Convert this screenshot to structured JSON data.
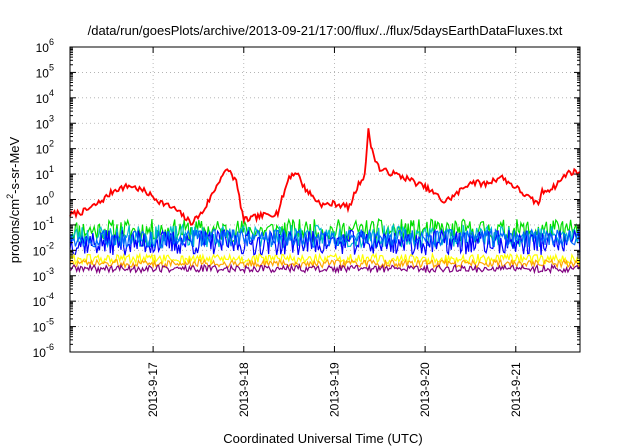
{
  "chart_data": {
    "type": "line",
    "title": "/data/run/goesPlots/archive/2013-09-21/17:00/flux/../flux/5daysEarthDataFluxes.txt",
    "xlabel": "Coordinated Universal Time (UTC)",
    "ylabel": {
      "prefix": "protons/cm",
      "sup": "2",
      "suffix": "-s-sr-MeV"
    },
    "y_scale": "log",
    "ylim": [
      1e-06,
      1000000.0
    ],
    "y_ticks": [
      {
        "exp": "-6",
        "value": 1e-06
      },
      {
        "exp": "-5",
        "value": 1e-05
      },
      {
        "exp": "-4",
        "value": 0.0001
      },
      {
        "exp": "-3",
        "value": 0.001
      },
      {
        "exp": "-2",
        "value": 0.01
      },
      {
        "exp": "-1",
        "value": 0.1
      },
      {
        "exp": "0",
        "value": 1
      },
      {
        "exp": "1",
        "value": 10
      },
      {
        "exp": "2",
        "value": 100
      },
      {
        "exp": "3",
        "value": 1000.0
      },
      {
        "exp": "4",
        "value": 10000.0
      },
      {
        "exp": "5",
        "value": 100000.0
      },
      {
        "exp": "6",
        "value": 1000000.0
      }
    ],
    "y_tick_base": "10",
    "xlim": [
      "2013-09-16T02:00",
      "2013-09-21T17:00"
    ],
    "x_ticks": [
      {
        "label": "2013-9-17",
        "date": "2013-09-17T00:00"
      },
      {
        "label": "2013-9-18",
        "date": "2013-09-18T00:00"
      },
      {
        "label": "2013-9-19",
        "date": "2013-09-19T00:00"
      },
      {
        "label": "2013-9-20",
        "date": "2013-09-20T00:00"
      },
      {
        "label": "2013-9-21",
        "date": "2013-09-21T00:00"
      }
    ],
    "grid": true,
    "series": [
      {
        "color": "#ff0000",
        "x": [
          "2013-09-16T02:00",
          "2013-09-16T06:00",
          "2013-09-16T10:00",
          "2013-09-16T14:00",
          "2013-09-16T18:00",
          "2013-09-16T22:00",
          "2013-09-17T02:00",
          "2013-09-17T06:00",
          "2013-09-17T10:00",
          "2013-09-17T13:00",
          "2013-09-17T16:00",
          "2013-09-17T18:00",
          "2013-09-17T20:00",
          "2013-09-17T22:00",
          "2013-09-18T00:00",
          "2013-09-18T03:00",
          "2013-09-18T06:00",
          "2013-09-18T09:00",
          "2013-09-18T12:00",
          "2013-09-18T14:00",
          "2013-09-18T16:00",
          "2013-09-18T19:00",
          "2013-09-18T21:00",
          "2013-09-19T00:00",
          "2013-09-19T04:00",
          "2013-09-19T06:00",
          "2013-09-19T08:00",
          "2013-09-19T09:00",
          "2013-09-19T10:00",
          "2013-09-19T12:00",
          "2013-09-19T16:00",
          "2013-09-19T20:00",
          "2013-09-20T00:00",
          "2013-09-20T03:00",
          "2013-09-20T05:00",
          "2013-09-20T08:00",
          "2013-09-20T12:00",
          "2013-09-20T16:00",
          "2013-09-20T20:00",
          "2013-09-21T00:00",
          "2013-09-21T04:00",
          "2013-09-21T06:00",
          "2013-09-21T07:00",
          "2013-09-21T10:00",
          "2013-09-21T14:00",
          "2013-09-21T17:00"
        ],
        "values": [
          0.25,
          0.35,
          0.8,
          2.5,
          3.5,
          2.0,
          0.8,
          0.4,
          0.12,
          0.3,
          2.0,
          8,
          15,
          5,
          0.15,
          0.2,
          0.25,
          0.3,
          8,
          12,
          3,
          1.0,
          0.6,
          0.7,
          0.5,
          3,
          10,
          500,
          80,
          15,
          10,
          6,
          3,
          1.5,
          0.8,
          1.5,
          5,
          4,
          8,
          3,
          1.0,
          0.7,
          2,
          3,
          12,
          12
        ]
      },
      {
        "color": "#00dd00",
        "base": 0.06,
        "amp": 0.45,
        "seed": 11
      },
      {
        "color": "#00bbcc",
        "base": 0.035,
        "amp": 0.45,
        "seed": 23
      },
      {
        "color": "#0000ff",
        "base": 0.02,
        "amp": 0.5,
        "seed": 37
      },
      {
        "color": "#0066ff",
        "base": 0.03,
        "amp": 0.35,
        "seed": 49
      },
      {
        "color": "#ffff00",
        "base": 0.0045,
        "amp": 0.2,
        "seed": 61
      },
      {
        "color": "#ffa500",
        "base": 0.003,
        "amp": 0.15,
        "seed": 73
      },
      {
        "color": "#800080",
        "base": 0.0019,
        "amp": 0.15,
        "seed": 89
      }
    ]
  }
}
